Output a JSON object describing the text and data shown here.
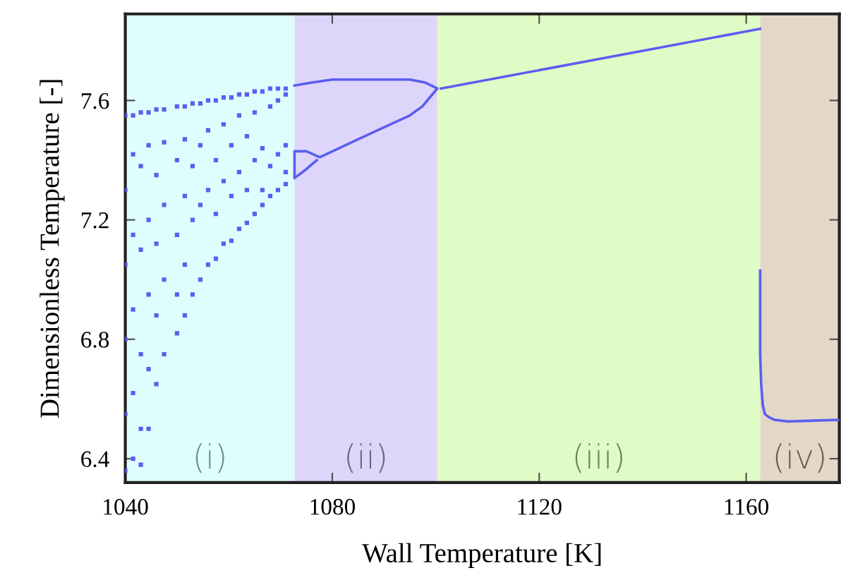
{
  "chart_data": {
    "type": "scatter",
    "xlabel": "Wall Temperature [K]",
    "ylabel": "Dimensionless Temperature [-]",
    "xlim": [
      1040,
      1178
    ],
    "ylim": [
      6.32,
      7.89
    ],
    "xticks": [
      1040,
      1080,
      1120,
      1160
    ],
    "yticks": [
      6.4,
      6.8,
      7.2,
      7.6
    ],
    "grid": false,
    "bands": [
      {
        "axis": "x",
        "from": 1040,
        "to": 1072.7,
        "label": "(i)",
        "color": "#dffdfd"
      },
      {
        "axis": "x",
        "from": 1072.7,
        "to": 1100.3,
        "label": "(ii)",
        "color": "#ded6fa"
      },
      {
        "axis": "x",
        "from": 1100.3,
        "to": 1162.7,
        "label": "(iii)",
        "color": "#e0fcc6"
      },
      {
        "axis": "x",
        "from": 1162.7,
        "to": 1178,
        "label": "(iv)",
        "color": "#e3d8c8"
      }
    ],
    "series": [
      {
        "color": "#5b5ef0",
        "marker": "square",
        "x": [
          1040,
          1040,
          1040,
          1040,
          1040,
          1040,
          1041.5,
          1041.5,
          1041.5,
          1041.5,
          1041.5,
          1041.5,
          1043,
          1043,
          1043,
          1043,
          1043,
          1043,
          1044.5,
          1044.5,
          1044.5,
          1044.5,
          1044.5,
          1044.5,
          1046,
          1046,
          1046,
          1046,
          1046,
          1047.5,
          1047.5,
          1047.5,
          1047.5,
          1047.5,
          1050,
          1050,
          1050,
          1050,
          1050,
          1051.5,
          1051.5,
          1051.5,
          1051.5,
          1051.5,
          1053,
          1053,
          1053,
          1053,
          1054.5,
          1054.5,
          1054.5,
          1054.5,
          1056,
          1056,
          1056,
          1056,
          1057.5,
          1057.5,
          1057.5,
          1057.5,
          1059,
          1059,
          1059,
          1059,
          1060.5,
          1060.5,
          1060.5,
          1060.5,
          1062,
          1062,
          1062,
          1062,
          1063.5,
          1063.5,
          1063.5,
          1063.5,
          1065,
          1065,
          1065,
          1065,
          1066.5,
          1066.5,
          1066.5,
          1066.5,
          1068,
          1068,
          1068,
          1068,
          1069.5,
          1069.5,
          1069.5,
          1069.5,
          1071,
          1071,
          1071,
          1071,
          1071
        ],
        "values": [
          7.55,
          7.3,
          7.05,
          6.8,
          6.55,
          6.36,
          7.55,
          7.42,
          7.15,
          6.9,
          6.62,
          6.4,
          7.56,
          7.38,
          7.1,
          6.75,
          6.5,
          6.38,
          7.56,
          7.45,
          7.2,
          6.95,
          6.7,
          6.5,
          7.57,
          7.35,
          7.12,
          6.88,
          6.65,
          7.57,
          7.46,
          7.25,
          7.0,
          6.75,
          7.58,
          7.4,
          7.15,
          6.95,
          6.82,
          7.58,
          7.47,
          7.28,
          7.05,
          6.88,
          7.59,
          7.38,
          7.2,
          6.95,
          7.59,
          7.45,
          7.25,
          7.0,
          7.6,
          7.5,
          7.3,
          7.05,
          7.6,
          7.4,
          7.22,
          7.07,
          7.61,
          7.52,
          7.33,
          7.12,
          7.61,
          7.45,
          7.28,
          7.13,
          7.62,
          7.55,
          7.36,
          7.17,
          7.62,
          7.48,
          7.3,
          7.19,
          7.63,
          7.56,
          7.4,
          7.22,
          7.63,
          7.44,
          7.3,
          7.25,
          7.64,
          7.58,
          7.38,
          7.28,
          7.64,
          7.6,
          7.42,
          7.3,
          7.64,
          7.62,
          7.45,
          7.36,
          7.32
        ]
      },
      {
        "type": "line",
        "color": "#5b5ef0",
        "x": [
          1072.7,
          1076,
          1080,
          1085,
          1090,
          1095,
          1098,
          1100.3,
          1097.4,
          1095,
          1090,
          1085,
          1077.6,
          1075,
          1072.7,
          1072.7,
          1075,
          1077
        ],
        "values": [
          7.65,
          7.66,
          7.67,
          7.67,
          7.67,
          7.67,
          7.66,
          7.64,
          7.58,
          7.55,
          7.51,
          7.47,
          7.41,
          7.43,
          7.43,
          7.34,
          7.37,
          7.4
        ]
      },
      {
        "type": "line",
        "color": "#5b5ef0",
        "x": [
          1101,
          1162.7
        ],
        "values": [
          7.64,
          7.84
        ]
      },
      {
        "type": "line",
        "color": "#5b5ef0",
        "x": [
          1162.7,
          1162.7,
          1162.9,
          1163.2,
          1163.6,
          1164.3,
          1165.5,
          1168,
          1172,
          1178
        ],
        "values": [
          7.03,
          6.75,
          6.65,
          6.58,
          6.55,
          6.54,
          6.53,
          6.525,
          6.527,
          6.53
        ]
      }
    ]
  }
}
